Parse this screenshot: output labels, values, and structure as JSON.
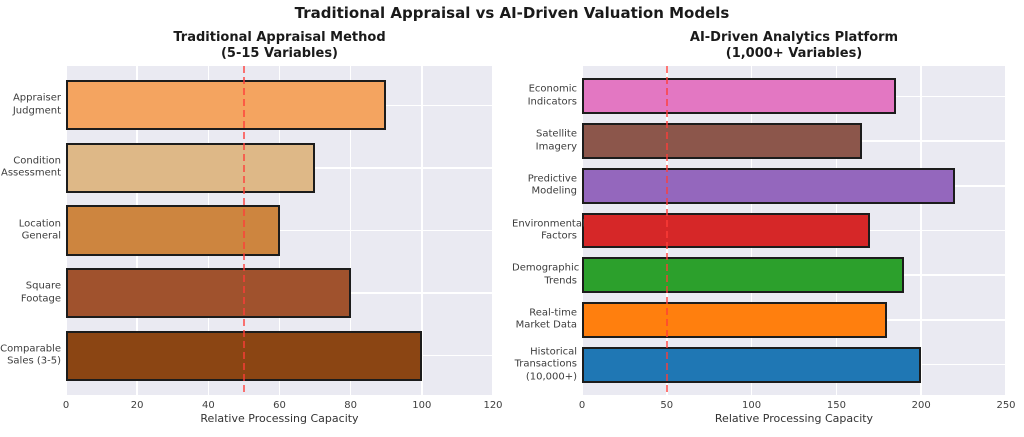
{
  "figure": {
    "title": "Traditional Appraisal vs AI-Driven Valuation Models"
  },
  "style": {
    "plot_background": "#eaeaf2",
    "grid_color": "#ffffff",
    "bar_edge_color": "#1c1c1c",
    "reference_line_color": "#ff3c38",
    "title_color": "#1a1a1a",
    "tick_label_color": "#404040"
  },
  "chart_data": [
    {
      "type": "bar",
      "orientation": "horizontal",
      "title_line1": "Traditional Appraisal Method",
      "title_line2": "(5-15 Variables)",
      "xlabel": "Relative Processing Capacity",
      "xlim": [
        0,
        120
      ],
      "xticks": [
        0,
        20,
        40,
        60,
        80,
        100,
        120
      ],
      "reference_line_x": 50,
      "grid": true,
      "categories": [
        "Appraiser Judgment",
        "Condition Assessment",
        "Location General",
        "Square Footage",
        "Comparable Sales (3-5)"
      ],
      "values": [
        90,
        70,
        60,
        80,
        100
      ],
      "bar_colors": [
        "#f4a460",
        "#deb887",
        "#cd853f",
        "#a0522d",
        "#8b4513"
      ]
    },
    {
      "type": "bar",
      "orientation": "horizontal",
      "title_line1": "AI-Driven Analytics Platform",
      "title_line2": "(1,000+ Variables)",
      "xlabel": "Relative Processing Capacity",
      "xlim": [
        0,
        250
      ],
      "xticks": [
        0,
        50,
        100,
        150,
        200,
        250
      ],
      "reference_line_x": 50,
      "grid": true,
      "categories": [
        "Economic Indicators",
        "Satellite Imagery",
        "Predictive Modeling",
        "Environmental Factors",
        "Demographic Trends",
        "Real-time Market Data",
        "Historical Transactions (10,000+)"
      ],
      "values": [
        185,
        165,
        220,
        170,
        190,
        180,
        200
      ],
      "bar_colors": [
        "#e377c2",
        "#8c564b",
        "#9467bd",
        "#d62728",
        "#2ca02c",
        "#ff7f0e",
        "#1f77b4"
      ]
    }
  ]
}
